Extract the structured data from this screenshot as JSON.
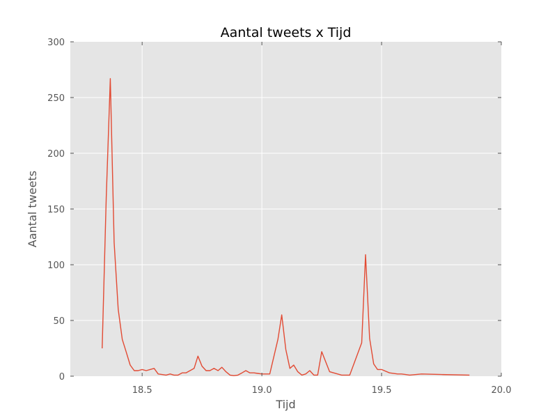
{
  "chart_data": {
    "type": "line",
    "title": "Aantal tweets x Tijd",
    "xlabel": "Tijd",
    "ylabel": "Aantal tweets",
    "xlim": [
      18.2,
      20.0
    ],
    "ylim": [
      0,
      300
    ],
    "xticks": [
      18.5,
      19.0,
      19.5,
      20.0
    ],
    "xtick_labels": [
      "18.5",
      "19.0",
      "19.5",
      "20.0"
    ],
    "yticks": [
      0,
      50,
      100,
      150,
      200,
      250,
      300
    ],
    "ytick_labels": [
      "0",
      "50",
      "100",
      "150",
      "200",
      "250",
      "300"
    ],
    "grid": true,
    "colors": {
      "line": "#e24a33",
      "plot_bg": "#e5e5e5",
      "grid": "#ffffff"
    },
    "series": [
      {
        "x": [
          18.333,
          18.35,
          18.367,
          18.383,
          18.4,
          18.417,
          18.433,
          18.45,
          18.467,
          18.483,
          18.5,
          18.517,
          18.533,
          18.55,
          18.567,
          18.583,
          18.6,
          18.617,
          18.633,
          18.65,
          18.667,
          18.683,
          18.7,
          18.717,
          18.733,
          18.75,
          18.767,
          18.783,
          18.8,
          18.817,
          18.833,
          18.85,
          18.867,
          18.883,
          18.9,
          18.917,
          18.933,
          18.95,
          18.967,
          18.983,
          19.0,
          19.033,
          19.067,
          19.083,
          19.1,
          19.117,
          19.133,
          19.15,
          19.167,
          19.183,
          19.2,
          19.217,
          19.233,
          19.25,
          19.283,
          19.333,
          19.367,
          19.417,
          19.433,
          19.45,
          19.467,
          19.483,
          19.5,
          19.533,
          19.567,
          19.583,
          19.6,
          19.617,
          19.667,
          19.75,
          19.867
        ],
        "y": [
          25,
          160,
          267,
          120,
          60,
          33,
          22,
          10,
          5,
          5,
          6,
          5,
          6,
          7,
          2,
          1.5,
          1,
          2,
          1,
          1,
          3,
          3,
          5,
          7,
          18,
          9,
          5,
          5,
          7,
          5,
          8,
          4,
          1,
          0.5,
          1,
          3,
          5,
          3,
          3,
          2.5,
          2,
          2,
          33,
          55,
          24,
          7,
          10,
          4,
          1,
          2,
          5,
          1,
          1,
          22,
          4,
          1,
          1,
          30,
          109,
          34,
          11,
          6,
          6,
          3,
          2,
          2,
          1.5,
          1,
          2,
          1.5,
          1
        ]
      }
    ]
  }
}
